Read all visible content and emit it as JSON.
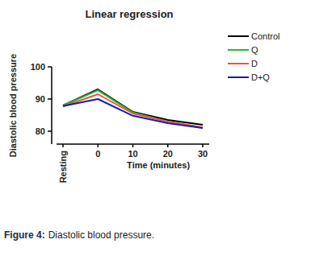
{
  "chart_data": {
    "type": "line",
    "title": "Linear regression",
    "x_label": "Time (minutes)",
    "y_label": "Diastolic blood pressure",
    "categories": [
      "Resting",
      "0",
      "10",
      "20",
      "30"
    ],
    "series": [
      {
        "name": "Control",
        "color": "#000000",
        "values": [
          88,
          93,
          86,
          83.5,
          82
        ]
      },
      {
        "name": "Q",
        "color": "#2db52d",
        "values": [
          88,
          92.7,
          85.8,
          83,
          81
        ]
      },
      {
        "name": "D",
        "color": "#e8544c",
        "values": [
          87.7,
          91.5,
          85.5,
          83,
          81.2
        ]
      },
      {
        "name": "D+Q",
        "color": "#1b1ba6",
        "values": [
          87.8,
          90,
          84.8,
          82.5,
          81
        ]
      }
    ],
    "ylim": [
      76,
      100
    ],
    "yticks": [
      80,
      90,
      100
    ],
    "grid": false,
    "legend": "right",
    "caption_label": "Figure 4:",
    "caption": "Diastolic blood pressure."
  }
}
